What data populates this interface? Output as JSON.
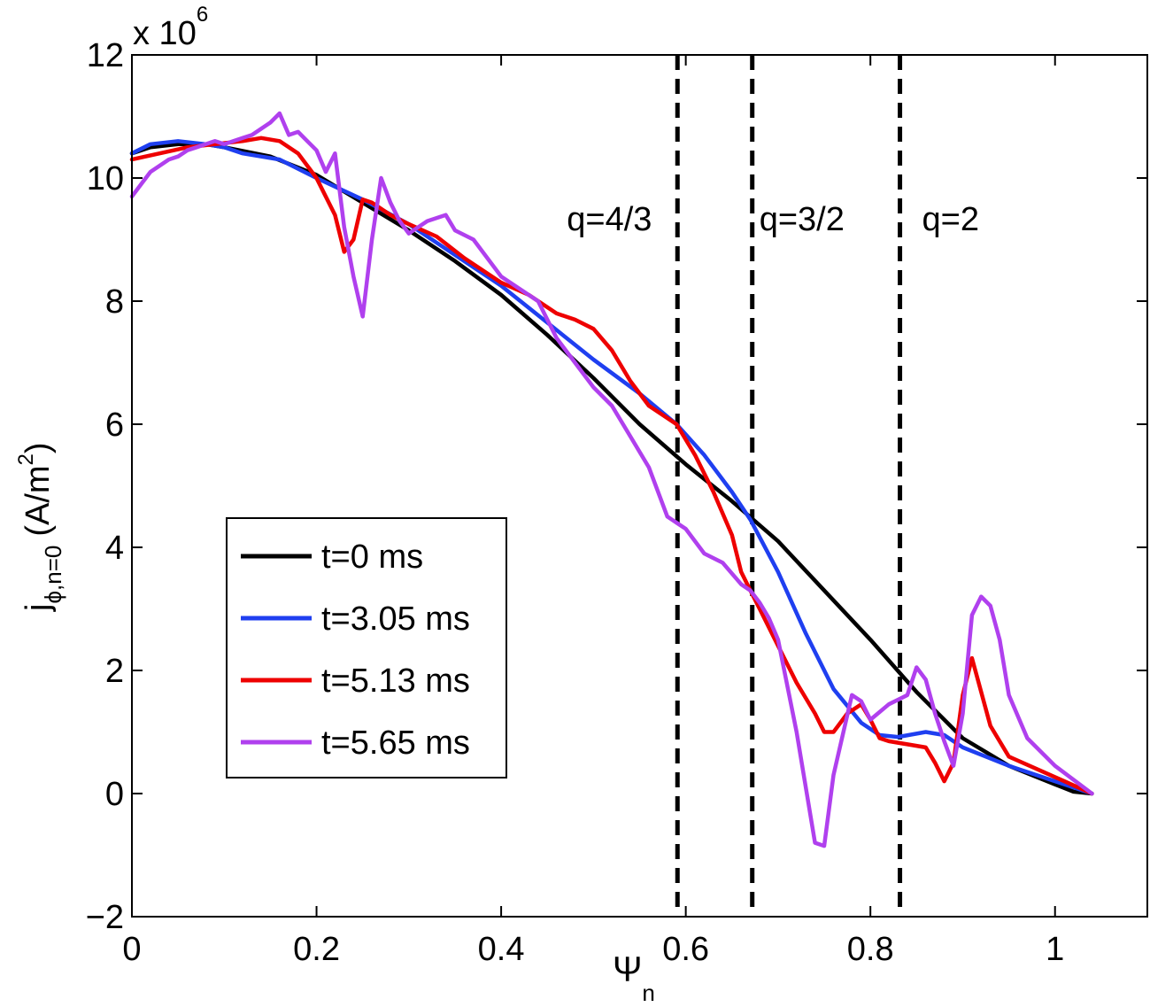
{
  "chart_data": {
    "type": "line",
    "title": "",
    "xlabel": {
      "main": "Ψ",
      "sub": "n"
    },
    "ylabel": {
      "main": "j",
      "sub": "ϕ,n=0",
      "unit_pre": "(A/m",
      "unit_sup": "2",
      "unit_post": ")"
    },
    "y_multiplier": {
      "prefix": "x 10",
      "exp": "6"
    },
    "xlim": [
      0,
      1.1
    ],
    "ylim": [
      -2,
      12
    ],
    "xticks": [
      0,
      0.2,
      0.4,
      0.6,
      0.8,
      1
    ],
    "xtick_labels": [
      "0",
      "0.2",
      "0.4",
      "0.6",
      "0.8",
      "1"
    ],
    "yticks": [
      -2,
      0,
      2,
      4,
      6,
      8,
      10,
      12
    ],
    "ytick_labels": [
      "−2",
      "0",
      "2",
      "4",
      "6",
      "8",
      "10",
      "12"
    ],
    "grid": false,
    "legend_position": "lower-left",
    "vlines": [
      {
        "x": 0.591,
        "label": "q=4/3"
      },
      {
        "x": 0.672,
        "label": "q=3/2"
      },
      {
        "x": 0.832,
        "label": "q=2"
      }
    ],
    "series": [
      {
        "name": "t=0 ms",
        "color": "#000000",
        "x": [
          0,
          0.02,
          0.05,
          0.08,
          0.1,
          0.15,
          0.2,
          0.25,
          0.3,
          0.35,
          0.4,
          0.45,
          0.5,
          0.55,
          0.6,
          0.65,
          0.7,
          0.75,
          0.8,
          0.85,
          0.9,
          0.95,
          1.0,
          1.02,
          1.04
        ],
        "values": [
          10.4,
          10.5,
          10.55,
          10.55,
          10.5,
          10.35,
          10.05,
          9.6,
          9.15,
          8.65,
          8.1,
          7.45,
          6.75,
          6.0,
          5.35,
          4.75,
          4.1,
          3.3,
          2.5,
          1.65,
          0.9,
          0.45,
          0.15,
          0.03,
          0
        ]
      },
      {
        "name": "t=3.05 ms",
        "color": "#1f3ff0",
        "x": [
          0,
          0.02,
          0.05,
          0.08,
          0.1,
          0.12,
          0.14,
          0.16,
          0.2,
          0.25,
          0.3,
          0.35,
          0.4,
          0.45,
          0.5,
          0.55,
          0.59,
          0.62,
          0.65,
          0.67,
          0.7,
          0.73,
          0.76,
          0.79,
          0.81,
          0.83,
          0.86,
          0.88,
          0.9,
          0.95,
          1.0,
          1.04
        ],
        "values": [
          10.4,
          10.55,
          10.6,
          10.55,
          10.5,
          10.4,
          10.35,
          10.3,
          10.0,
          9.65,
          9.25,
          8.75,
          8.25,
          7.65,
          7.05,
          6.5,
          6.0,
          5.5,
          4.9,
          4.45,
          3.6,
          2.6,
          1.7,
          1.15,
          0.95,
          0.92,
          1.0,
          0.95,
          0.75,
          0.45,
          0.2,
          0
        ]
      },
      {
        "name": "t=5.13 ms",
        "color": "#ee0000",
        "x": [
          0,
          0.03,
          0.06,
          0.09,
          0.12,
          0.14,
          0.16,
          0.18,
          0.2,
          0.22,
          0.23,
          0.24,
          0.25,
          0.26,
          0.28,
          0.3,
          0.33,
          0.36,
          0.4,
          0.43,
          0.46,
          0.48,
          0.5,
          0.52,
          0.54,
          0.56,
          0.59,
          0.61,
          0.63,
          0.65,
          0.66,
          0.67,
          0.68,
          0.7,
          0.72,
          0.74,
          0.75,
          0.76,
          0.775,
          0.79,
          0.8,
          0.81,
          0.82,
          0.84,
          0.86,
          0.87,
          0.88,
          0.89,
          0.9,
          0.91,
          0.93,
          0.95,
          0.98,
          1.01,
          1.04
        ],
        "values": [
          10.3,
          10.4,
          10.5,
          10.55,
          10.6,
          10.65,
          10.6,
          10.4,
          10.0,
          9.4,
          8.8,
          9.0,
          9.65,
          9.6,
          9.4,
          9.25,
          9.05,
          8.7,
          8.3,
          8.1,
          7.8,
          7.7,
          7.55,
          7.2,
          6.7,
          6.3,
          6.0,
          5.5,
          4.9,
          4.2,
          3.6,
          3.3,
          3.0,
          2.4,
          1.8,
          1.3,
          1.0,
          1.0,
          1.3,
          1.45,
          1.2,
          0.9,
          0.85,
          0.8,
          0.75,
          0.5,
          0.2,
          0.5,
          1.6,
          2.2,
          1.1,
          0.6,
          0.4,
          0.2,
          0
        ]
      },
      {
        "name": "t=5.65 ms",
        "color": "#b040ee",
        "x": [
          0,
          0.01,
          0.02,
          0.03,
          0.04,
          0.05,
          0.06,
          0.07,
          0.08,
          0.09,
          0.1,
          0.11,
          0.12,
          0.13,
          0.14,
          0.15,
          0.16,
          0.17,
          0.18,
          0.19,
          0.2,
          0.21,
          0.22,
          0.23,
          0.24,
          0.25,
          0.26,
          0.27,
          0.28,
          0.29,
          0.3,
          0.32,
          0.34,
          0.35,
          0.37,
          0.4,
          0.42,
          0.44,
          0.46,
          0.48,
          0.5,
          0.52,
          0.54,
          0.56,
          0.58,
          0.6,
          0.62,
          0.64,
          0.66,
          0.67,
          0.68,
          0.69,
          0.7,
          0.72,
          0.74,
          0.75,
          0.76,
          0.78,
          0.79,
          0.8,
          0.82,
          0.84,
          0.85,
          0.86,
          0.87,
          0.88,
          0.89,
          0.9,
          0.91,
          0.92,
          0.93,
          0.94,
          0.95,
          0.97,
          1.0,
          1.04
        ],
        "values": [
          9.7,
          9.9,
          10.1,
          10.2,
          10.3,
          10.35,
          10.45,
          10.5,
          10.55,
          10.6,
          10.55,
          10.6,
          10.65,
          10.7,
          10.8,
          10.9,
          11.05,
          10.7,
          10.75,
          10.6,
          10.45,
          10.1,
          10.4,
          9.2,
          8.4,
          7.75,
          9.0,
          10.0,
          9.6,
          9.3,
          9.1,
          9.3,
          9.4,
          9.15,
          9.0,
          8.4,
          8.2,
          8.0,
          7.4,
          7.0,
          6.6,
          6.3,
          5.8,
          5.3,
          4.5,
          4.3,
          3.9,
          3.75,
          3.4,
          3.3,
          3.1,
          2.85,
          2.5,
          1.0,
          -0.8,
          -0.85,
          0.3,
          1.6,
          1.5,
          1.2,
          1.45,
          1.6,
          2.05,
          1.85,
          1.3,
          0.85,
          0.45,
          1.3,
          2.9,
          3.2,
          3.05,
          2.5,
          1.6,
          0.9,
          0.45,
          0
        ]
      }
    ]
  }
}
